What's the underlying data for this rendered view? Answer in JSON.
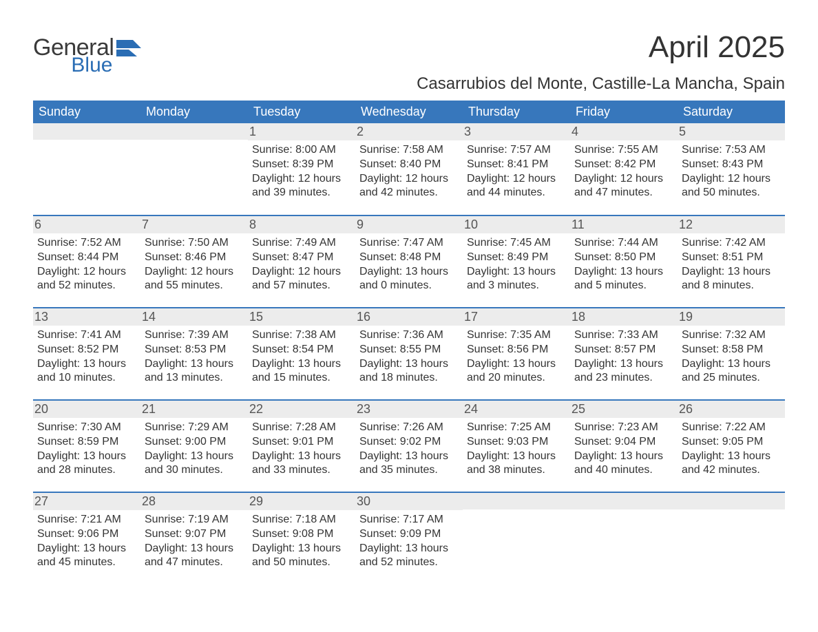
{
  "logo": {
    "general": "General",
    "blue": "Blue",
    "accent_color": "#2a6db4"
  },
  "title": "April 2025",
  "location": "Casarrubios del Monte, Castille-La Mancha, Spain",
  "colors": {
    "header_bg": "#3777bc",
    "header_text": "#ffffff",
    "daynum_bg": "#ececec",
    "body_text": "#333333",
    "rule": "#3777bc"
  },
  "day_headers": [
    "Sunday",
    "Monday",
    "Tuesday",
    "Wednesday",
    "Thursday",
    "Friday",
    "Saturday"
  ],
  "weeks": [
    [
      null,
      null,
      {
        "n": "1",
        "sr": "Sunrise: 8:00 AM",
        "ss": "Sunset: 8:39 PM",
        "d1": "Daylight: 12 hours",
        "d2": "and 39 minutes."
      },
      {
        "n": "2",
        "sr": "Sunrise: 7:58 AM",
        "ss": "Sunset: 8:40 PM",
        "d1": "Daylight: 12 hours",
        "d2": "and 42 minutes."
      },
      {
        "n": "3",
        "sr": "Sunrise: 7:57 AM",
        "ss": "Sunset: 8:41 PM",
        "d1": "Daylight: 12 hours",
        "d2": "and 44 minutes."
      },
      {
        "n": "4",
        "sr": "Sunrise: 7:55 AM",
        "ss": "Sunset: 8:42 PM",
        "d1": "Daylight: 12 hours",
        "d2": "and 47 minutes."
      },
      {
        "n": "5",
        "sr": "Sunrise: 7:53 AM",
        "ss": "Sunset: 8:43 PM",
        "d1": "Daylight: 12 hours",
        "d2": "and 50 minutes."
      }
    ],
    [
      {
        "n": "6",
        "sr": "Sunrise: 7:52 AM",
        "ss": "Sunset: 8:44 PM",
        "d1": "Daylight: 12 hours",
        "d2": "and 52 minutes."
      },
      {
        "n": "7",
        "sr": "Sunrise: 7:50 AM",
        "ss": "Sunset: 8:46 PM",
        "d1": "Daylight: 12 hours",
        "d2": "and 55 minutes."
      },
      {
        "n": "8",
        "sr": "Sunrise: 7:49 AM",
        "ss": "Sunset: 8:47 PM",
        "d1": "Daylight: 12 hours",
        "d2": "and 57 minutes."
      },
      {
        "n": "9",
        "sr": "Sunrise: 7:47 AM",
        "ss": "Sunset: 8:48 PM",
        "d1": "Daylight: 13 hours",
        "d2": "and 0 minutes."
      },
      {
        "n": "10",
        "sr": "Sunrise: 7:45 AM",
        "ss": "Sunset: 8:49 PM",
        "d1": "Daylight: 13 hours",
        "d2": "and 3 minutes."
      },
      {
        "n": "11",
        "sr": "Sunrise: 7:44 AM",
        "ss": "Sunset: 8:50 PM",
        "d1": "Daylight: 13 hours",
        "d2": "and 5 minutes."
      },
      {
        "n": "12",
        "sr": "Sunrise: 7:42 AM",
        "ss": "Sunset: 8:51 PM",
        "d1": "Daylight: 13 hours",
        "d2": "and 8 minutes."
      }
    ],
    [
      {
        "n": "13",
        "sr": "Sunrise: 7:41 AM",
        "ss": "Sunset: 8:52 PM",
        "d1": "Daylight: 13 hours",
        "d2": "and 10 minutes."
      },
      {
        "n": "14",
        "sr": "Sunrise: 7:39 AM",
        "ss": "Sunset: 8:53 PM",
        "d1": "Daylight: 13 hours",
        "d2": "and 13 minutes."
      },
      {
        "n": "15",
        "sr": "Sunrise: 7:38 AM",
        "ss": "Sunset: 8:54 PM",
        "d1": "Daylight: 13 hours",
        "d2": "and 15 minutes."
      },
      {
        "n": "16",
        "sr": "Sunrise: 7:36 AM",
        "ss": "Sunset: 8:55 PM",
        "d1": "Daylight: 13 hours",
        "d2": "and 18 minutes."
      },
      {
        "n": "17",
        "sr": "Sunrise: 7:35 AM",
        "ss": "Sunset: 8:56 PM",
        "d1": "Daylight: 13 hours",
        "d2": "and 20 minutes."
      },
      {
        "n": "18",
        "sr": "Sunrise: 7:33 AM",
        "ss": "Sunset: 8:57 PM",
        "d1": "Daylight: 13 hours",
        "d2": "and 23 minutes."
      },
      {
        "n": "19",
        "sr": "Sunrise: 7:32 AM",
        "ss": "Sunset: 8:58 PM",
        "d1": "Daylight: 13 hours",
        "d2": "and 25 minutes."
      }
    ],
    [
      {
        "n": "20",
        "sr": "Sunrise: 7:30 AM",
        "ss": "Sunset: 8:59 PM",
        "d1": "Daylight: 13 hours",
        "d2": "and 28 minutes."
      },
      {
        "n": "21",
        "sr": "Sunrise: 7:29 AM",
        "ss": "Sunset: 9:00 PM",
        "d1": "Daylight: 13 hours",
        "d2": "and 30 minutes."
      },
      {
        "n": "22",
        "sr": "Sunrise: 7:28 AM",
        "ss": "Sunset: 9:01 PM",
        "d1": "Daylight: 13 hours",
        "d2": "and 33 minutes."
      },
      {
        "n": "23",
        "sr": "Sunrise: 7:26 AM",
        "ss": "Sunset: 9:02 PM",
        "d1": "Daylight: 13 hours",
        "d2": "and 35 minutes."
      },
      {
        "n": "24",
        "sr": "Sunrise: 7:25 AM",
        "ss": "Sunset: 9:03 PM",
        "d1": "Daylight: 13 hours",
        "d2": "and 38 minutes."
      },
      {
        "n": "25",
        "sr": "Sunrise: 7:23 AM",
        "ss": "Sunset: 9:04 PM",
        "d1": "Daylight: 13 hours",
        "d2": "and 40 minutes."
      },
      {
        "n": "26",
        "sr": "Sunrise: 7:22 AM",
        "ss": "Sunset: 9:05 PM",
        "d1": "Daylight: 13 hours",
        "d2": "and 42 minutes."
      }
    ],
    [
      {
        "n": "27",
        "sr": "Sunrise: 7:21 AM",
        "ss": "Sunset: 9:06 PM",
        "d1": "Daylight: 13 hours",
        "d2": "and 45 minutes."
      },
      {
        "n": "28",
        "sr": "Sunrise: 7:19 AM",
        "ss": "Sunset: 9:07 PM",
        "d1": "Daylight: 13 hours",
        "d2": "and 47 minutes."
      },
      {
        "n": "29",
        "sr": "Sunrise: 7:18 AM",
        "ss": "Sunset: 9:08 PM",
        "d1": "Daylight: 13 hours",
        "d2": "and 50 minutes."
      },
      {
        "n": "30",
        "sr": "Sunrise: 7:17 AM",
        "ss": "Sunset: 9:09 PM",
        "d1": "Daylight: 13 hours",
        "d2": "and 52 minutes."
      },
      null,
      null,
      null
    ]
  ]
}
